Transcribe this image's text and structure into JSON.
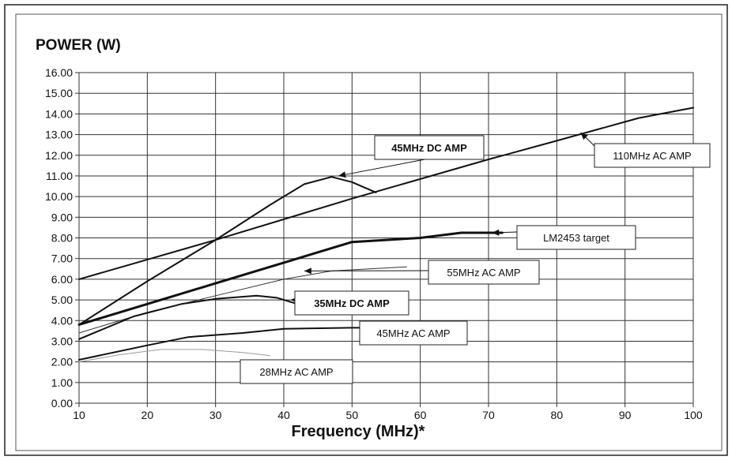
{
  "chart_data": {
    "type": "line",
    "ylabel": "POWER (W)",
    "xlabel": "Frequency (MHz)*",
    "xlim": [
      10,
      100
    ],
    "ylim": [
      0,
      16
    ],
    "x_ticks": [
      "10",
      "20",
      "30",
      "40",
      "50",
      "60",
      "70",
      "80",
      "90",
      "100"
    ],
    "y_ticks": [
      "0.00",
      "1.00",
      "2.00",
      "3.00",
      "4.00",
      "5.00",
      "6.00",
      "7.00",
      "8.00",
      "9.00",
      "10.00",
      "11.00",
      "12.00",
      "13.00",
      "14.00",
      "15.00",
      "16.00"
    ],
    "grid": true,
    "series": [
      {
        "name": "110MHz AC AMP",
        "bold": false,
        "width": 2,
        "color": "#111111",
        "points": [
          [
            10,
            6.0
          ],
          [
            30,
            7.9
          ],
          [
            50,
            9.9
          ],
          [
            70,
            11.8
          ],
          [
            80,
            12.7
          ],
          [
            92,
            13.8
          ],
          [
            100,
            14.3
          ]
        ]
      },
      {
        "name": "45MHz DC AMP",
        "bold": true,
        "width": 2,
        "color": "#111111",
        "points": [
          [
            10,
            3.8
          ],
          [
            20,
            5.9
          ],
          [
            30,
            7.9
          ],
          [
            38,
            9.6
          ],
          [
            43,
            10.6
          ],
          [
            47,
            10.95
          ],
          [
            50,
            10.7
          ],
          [
            53.5,
            10.2
          ]
        ]
      },
      {
        "name": "LM2453 target",
        "bold": false,
        "width": 3,
        "color": "#111111",
        "points": [
          [
            10,
            3.8
          ],
          [
            20,
            4.8
          ],
          [
            30,
            5.8
          ],
          [
            40,
            6.8
          ],
          [
            50,
            7.8
          ],
          [
            60,
            8.0
          ],
          [
            66,
            8.25
          ],
          [
            72,
            8.25
          ]
        ]
      },
      {
        "name": "55MHz AC AMP",
        "bold": false,
        "width": 1,
        "color": "#333333",
        "points": [
          [
            10,
            3.4
          ],
          [
            20,
            4.4
          ],
          [
            30,
            5.2
          ],
          [
            40,
            6.0
          ],
          [
            47,
            6.4
          ],
          [
            58,
            6.6
          ]
        ]
      },
      {
        "name": "35MHz DC AMP",
        "bold": true,
        "width": 2,
        "color": "#111111",
        "points": [
          [
            10,
            3.1
          ],
          [
            18,
            4.2
          ],
          [
            25,
            4.8
          ],
          [
            30,
            5.05
          ],
          [
            36,
            5.2
          ],
          [
            39,
            5.1
          ],
          [
            42,
            4.8
          ]
        ]
      },
      {
        "name": "45MHz AC AMP",
        "bold": false,
        "width": 2,
        "color": "#111111",
        "points": [
          [
            10,
            2.1
          ],
          [
            20,
            2.8
          ],
          [
            26,
            3.2
          ],
          [
            34,
            3.4
          ],
          [
            40,
            3.6
          ],
          [
            50,
            3.65
          ],
          [
            54,
            3.65
          ]
        ]
      },
      {
        "name": "28MHz AC AMP",
        "bold": false,
        "width": 1,
        "color": "#9a9a9a",
        "points": [
          [
            10,
            2.0
          ],
          [
            16,
            2.35
          ],
          [
            22,
            2.6
          ],
          [
            28,
            2.6
          ],
          [
            34,
            2.45
          ],
          [
            38,
            2.3
          ]
        ]
      }
    ],
    "annotations": [
      {
        "series": "45MHz DC AMP",
        "text": "45MHz DC AMP",
        "bold": true,
        "box": true,
        "arrow": [
          48,
          11.0
        ]
      },
      {
        "series": "110MHz AC AMP",
        "text": "110MHz AC AMP",
        "bold": false,
        "box": true,
        "arrow": [
          83.5,
          13.1
        ]
      },
      {
        "series": "LM2453 target",
        "text": "LM2453 target",
        "bold": false,
        "box": true,
        "arrow": [
          70.5,
          8.25
        ]
      },
      {
        "series": "55MHz AC AMP",
        "text": "55MHz AC AMP",
        "bold": false,
        "box": true,
        "arrow": [
          43,
          6.4
        ]
      },
      {
        "series": "35MHz DC AMP",
        "text": "35MHz DC AMP",
        "bold": true,
        "box": true,
        "arrow": [
          41,
          5.0
        ]
      },
      {
        "series": "45MHz AC AMP",
        "text": "45MHz AC AMP",
        "bold": false,
        "box": true,
        "arrow": null
      },
      {
        "series": "28MHz AC AMP",
        "text": "28MHz AC AMP",
        "bold": false,
        "box": true,
        "arrow": null
      }
    ]
  }
}
